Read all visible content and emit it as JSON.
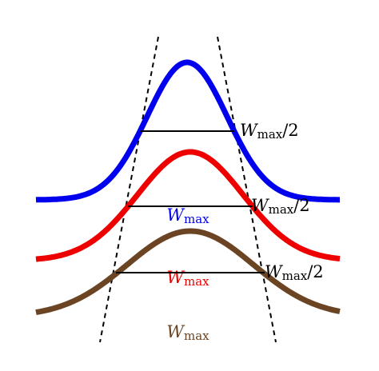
{
  "curves": [
    {
      "color": "#0000ee",
      "label": {
        "symbol": "W",
        "subscript": "max"
      },
      "half_label": {
        "symbol": "W",
        "subscript": "max",
        "suffix": "/2"
      }
    },
    {
      "color": "#ee0000",
      "label": {
        "symbol": "W",
        "subscript": "max"
      },
      "half_label": {
        "symbol": "W",
        "subscript": "max",
        "suffix": "/2"
      }
    },
    {
      "color": "#6b4423",
      "label": {
        "symbol": "W",
        "subscript": "max"
      },
      "half_label": {
        "symbol": "W",
        "subscript": "max",
        "suffix": "/2"
      }
    }
  ]
}
